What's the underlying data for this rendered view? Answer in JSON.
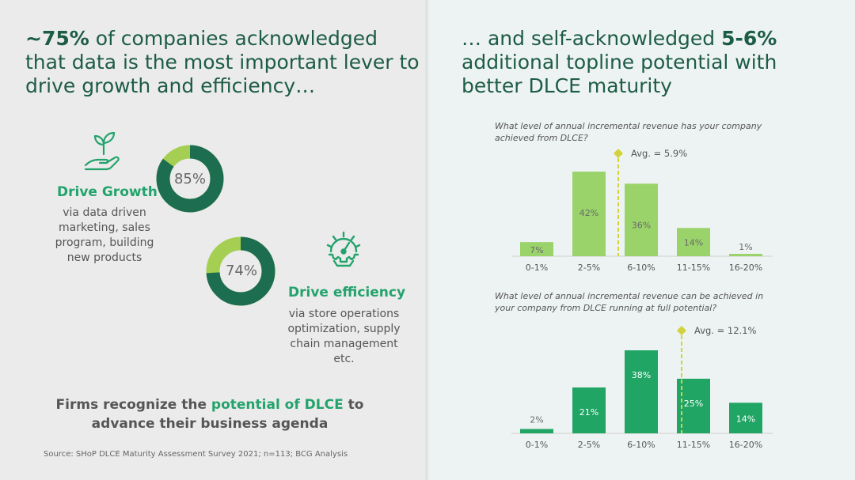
{
  "left": {
    "headline_pre": "~75%",
    "headline_post": " of companies acknowledged that data is the most important lever to drive growth and efficiency…",
    "growth": {
      "icon": "plant-hand-icon",
      "title": "Drive Growth",
      "text": "via data driven marketing, sales program, building new products",
      "pct_label": "85%",
      "pct": 85
    },
    "efficiency": {
      "icon": "gauge-gear-icon",
      "title": "Drive efficiency",
      "text": "via store operations optimization, supply chain management etc.",
      "pct_label": "74%",
      "pct": 74
    },
    "tagline_pre": "Firms recognize the ",
    "tagline_hl": "potential of DLCE",
    "tagline_post": " to advance their business agenda",
    "source": "Source: SHoP DLCE Maturity Assessment Survey 2021; n=113; BCG Analysis"
  },
  "right": {
    "headline_pre": "… and self-acknowledged ",
    "headline_bold": "5-6%",
    "headline_post": " additional topline potential with better DLCE maturity"
  },
  "colors": {
    "dark_green": "#1d6e50",
    "light_green": "#a5cf52",
    "bar_light": "#99d36a",
    "bar_dark": "#21a565",
    "avg_marker": "#d2d23a",
    "title_green": "#1d5c45"
  },
  "chart_data": [
    {
      "type": "bar",
      "title": "What level of annual incremental revenue has your company achieved from DLCE?",
      "categories": [
        "0-1%",
        "2-5%",
        "6-10%",
        "11-15%",
        "16-20%"
      ],
      "values": [
        7,
        42,
        36,
        14,
        1
      ],
      "value_labels": [
        "7%",
        "42%",
        "36%",
        "14%",
        "1%"
      ],
      "avg_label": "Avg. = 5.9%",
      "avg_value": 5.9,
      "ylim": [
        0,
        42
      ]
    },
    {
      "type": "bar",
      "title": "What level of annual incremental revenue can be achieved in your company from DLCE running at full potential?",
      "categories": [
        "0-1%",
        "2-5%",
        "6-10%",
        "11-15%",
        "16-20%"
      ],
      "values": [
        2,
        21,
        38,
        25,
        14
      ],
      "value_labels": [
        "2%",
        "21%",
        "38%",
        "25%",
        "14%"
      ],
      "avg_label": "Avg. = 12.1%",
      "avg_value": 12.1,
      "ylim": [
        0,
        38
      ]
    }
  ]
}
